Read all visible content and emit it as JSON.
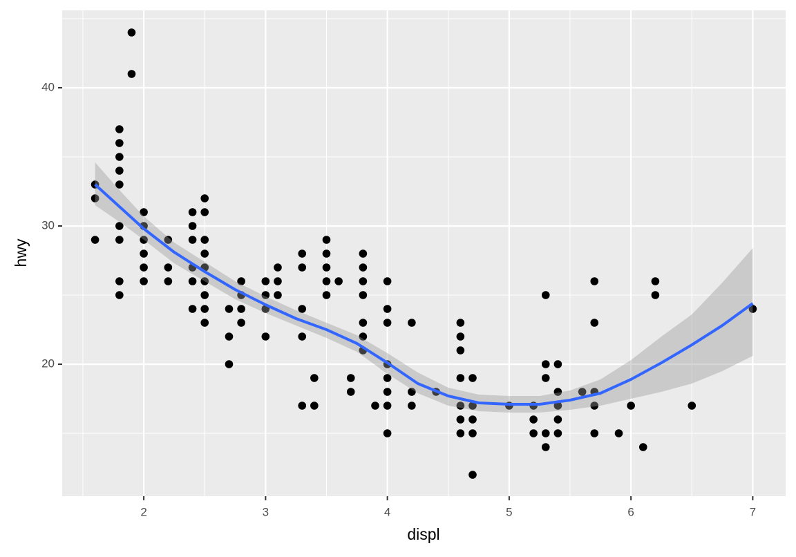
{
  "chart_data": {
    "type": "scatter",
    "x_label": "displ",
    "y_label": "hwy",
    "x": [
      1.6,
      1.6,
      1.6,
      1.8,
      1.8,
      1.8,
      1.8,
      1.8,
      1.8,
      1.8,
      1.8,
      1.8,
      1.9,
      1.9,
      2.0,
      2.0,
      2.0,
      2.0,
      2.0,
      2.0,
      2.2,
      2.2,
      2.2,
      2.4,
      2.4,
      2.4,
      2.4,
      2.4,
      2.4,
      2.5,
      2.5,
      2.5,
      2.5,
      2.5,
      2.5,
      2.5,
      2.5,
      2.5,
      2.7,
      2.7,
      2.7,
      2.8,
      2.8,
      2.8,
      2.8,
      3.0,
      3.0,
      3.0,
      3.0,
      3.1,
      3.1,
      3.1,
      3.3,
      3.3,
      3.3,
      3.3,
      3.3,
      3.4,
      3.4,
      3.5,
      3.5,
      3.5,
      3.5,
      3.5,
      3.6,
      3.7,
      3.7,
      3.8,
      3.8,
      3.8,
      3.8,
      3.8,
      3.8,
      3.8,
      3.9,
      4.0,
      4.0,
      4.0,
      4.0,
      4.0,
      4.0,
      4.0,
      4.0,
      4.2,
      4.2,
      4.2,
      4.4,
      4.6,
      4.6,
      4.6,
      4.6,
      4.6,
      4.6,
      4.6,
      4.7,
      4.7,
      4.7,
      4.7,
      4.7,
      5.0,
      5.2,
      5.2,
      5.2,
      5.3,
      5.3,
      5.3,
      5.3,
      5.3,
      5.4,
      5.4,
      5.4,
      5.4,
      5.4,
      5.6,
      5.7,
      5.7,
      5.7,
      5.7,
      5.7,
      5.9,
      6.0,
      6.1,
      6.2,
      6.2,
      6.5,
      7.0
    ],
    "y": [
      33,
      32,
      29,
      37,
      36,
      35,
      34,
      33,
      30,
      29,
      26,
      25,
      44,
      41,
      31,
      30,
      29,
      28,
      27,
      26,
      29,
      27,
      26,
      31,
      30,
      29,
      27,
      26,
      24,
      32,
      31,
      29,
      28,
      27,
      26,
      25,
      24,
      23,
      24,
      22,
      20,
      26,
      25,
      24,
      23,
      26,
      25,
      24,
      22,
      27,
      26,
      25,
      28,
      27,
      24,
      22,
      17,
      19,
      17,
      29,
      28,
      27,
      26,
      25,
      26,
      19,
      18,
      28,
      27,
      26,
      25,
      23,
      22,
      21,
      17,
      26,
      24,
      23,
      20,
      19,
      18,
      17,
      15,
      23,
      18,
      17,
      18,
      23,
      22,
      21,
      19,
      17,
      16,
      15,
      19,
      17,
      16,
      15,
      12,
      17,
      17,
      16,
      15,
      25,
      20,
      19,
      15,
      14,
      20,
      18,
      17,
      16,
      15,
      18,
      26,
      23,
      18,
      17,
      15,
      15,
      17,
      14,
      26,
      25,
      17,
      24
    ],
    "point_color": "#000000",
    "smooth": {
      "x": [
        1.6,
        1.8,
        2.0,
        2.25,
        2.5,
        2.75,
        3.0,
        3.25,
        3.5,
        3.75,
        4.0,
        4.25,
        4.5,
        4.75,
        5.0,
        5.25,
        5.5,
        5.75,
        6.0,
        6.25,
        6.5,
        6.75,
        7.0
      ],
      "y": [
        33.0,
        31.4,
        29.8,
        28.1,
        26.7,
        25.4,
        24.3,
        23.3,
        22.5,
        21.5,
        20.1,
        18.6,
        17.7,
        17.2,
        17.1,
        17.1,
        17.4,
        17.9,
        18.9,
        20.1,
        21.4,
        22.8,
        24.4
      ],
      "ymin": [
        31.5,
        30.3,
        29.0,
        27.3,
        26.0,
        24.7,
        23.7,
        22.8,
        21.9,
        20.9,
        19.3,
        17.9,
        17.0,
        16.6,
        16.5,
        16.5,
        16.7,
        17.0,
        17.5,
        18.0,
        18.6,
        19.5,
        20.6
      ],
      "ymax": [
        34.6,
        32.6,
        30.7,
        28.8,
        27.4,
        26.0,
        24.9,
        23.9,
        23.0,
        22.1,
        20.8,
        19.4,
        18.3,
        17.8,
        17.7,
        17.7,
        18.1,
        18.9,
        20.3,
        22.0,
        23.6,
        25.9,
        28.4
      ],
      "color": "#3366FF",
      "fill": "#999999"
    },
    "xlim": [
      1.33,
      7.27
    ],
    "ylim": [
      10.45,
      45.6
    ],
    "xticks": [
      2,
      3,
      4,
      5,
      6,
      7
    ],
    "yticks": [
      20,
      30,
      40
    ],
    "x_minor_breaks": [
      1.5,
      2.5,
      3.5,
      4.5,
      5.5,
      6.5
    ],
    "y_minor_breaks": [
      15,
      25,
      35,
      45
    ],
    "grid": true
  }
}
